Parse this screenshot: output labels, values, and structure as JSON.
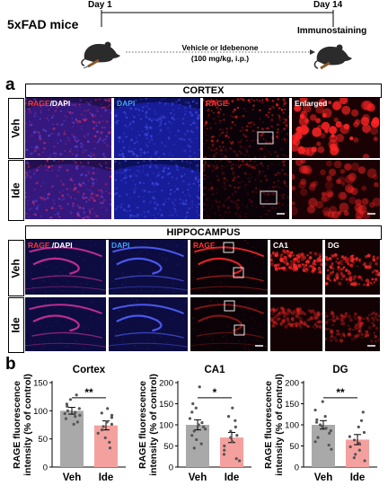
{
  "timeline": {
    "model": "5xFAD mice",
    "day_start": "Day 1",
    "day_end": "Day 14",
    "treatment_line1": "Vehicle or Idebenone",
    "treatment_line2": "(100 mg/kg, i.p.)",
    "endpoint": "Immunostaining"
  },
  "panel_a": {
    "label": "a",
    "cortex": {
      "title": "CORTEX",
      "columns": [
        {
          "part1": "RAGE",
          "part2": "/DAPI"
        },
        {
          "part1": "DAPI",
          "part2": ""
        },
        {
          "part1": "RAGE",
          "part2": ""
        },
        {
          "part1": "Enlarged",
          "part2": ""
        }
      ],
      "rows": [
        "Veh",
        "Ide"
      ]
    },
    "hippocampus": {
      "title": "HIPPOCAMPUS",
      "columns": [
        {
          "part1": "RAGE",
          "part2": " /DAPI"
        },
        {
          "part1": "DAPI",
          "part2": ""
        },
        {
          "part1": "RAGE",
          "part2": ""
        },
        {
          "part1": "CA1",
          "part2": ""
        },
        {
          "part1": "DG",
          "part2": ""
        }
      ],
      "rows": [
        "Veh",
        "Ide"
      ]
    }
  },
  "panel_b": {
    "label": "b",
    "colors": {
      "veh": "#a9a9a9",
      "ide": "#f4a09e"
    },
    "chart_data": [
      {
        "type": "bar",
        "title": "Cortex",
        "ylabel_line1": "RAGE fluorescence",
        "ylabel_line2": "intensity (% of control)",
        "categories": [
          "Veh",
          "Ide"
        ],
        "values": [
          100,
          74
        ],
        "errors": [
          6,
          8
        ],
        "ylim": [
          0,
          150
        ],
        "yticks": [
          0,
          50,
          100,
          150
        ],
        "significance": "**",
        "points": [
          [
            128,
            120,
            112,
            108,
            104,
            100,
            97,
            95,
            92,
            90,
            86,
            80,
            76
          ],
          [
            104,
            96,
            92,
            88,
            80,
            76,
            72,
            66,
            60,
            52,
            44,
            34
          ]
        ]
      },
      {
        "type": "bar",
        "title": "CA1",
        "ylabel_line1": "RAGE fluorescence",
        "ylabel_line2": "intensity (% of control)",
        "categories": [
          "Veh",
          "Ide"
        ],
        "values": [
          100,
          70
        ],
        "errors": [
          12,
          12
        ],
        "ylim": [
          0,
          200
        ],
        "yticks": [
          0,
          50,
          100,
          150,
          200
        ],
        "significance": "*",
        "points": [
          [
            190,
            150,
            140,
            130,
            115,
            105,
            100,
            95,
            90,
            85,
            75,
            65,
            55,
            45
          ],
          [
            140,
            120,
            110,
            95,
            85,
            75,
            70,
            60,
            50,
            40,
            30,
            20,
            15
          ]
        ]
      },
      {
        "type": "bar",
        "title": "DG",
        "ylabel_line1": "RAGE fluorescence",
        "ylabel_line2": "intensity (% of control)",
        "categories": [
          "Veh",
          "Ide"
        ],
        "values": [
          100,
          65
        ],
        "errors": [
          10,
          12
        ],
        "ylim": [
          0,
          200
        ],
        "yticks": [
          0,
          50,
          100,
          150,
          200
        ],
        "significance": "**",
        "points": [
          [
            155,
            135,
            120,
            112,
            106,
            100,
            96,
            92,
            86,
            80,
            70,
            60,
            52,
            42
          ],
          [
            130,
            110,
            95,
            82,
            72,
            64,
            56,
            48,
            40,
            30,
            22,
            15
          ]
        ]
      }
    ]
  }
}
